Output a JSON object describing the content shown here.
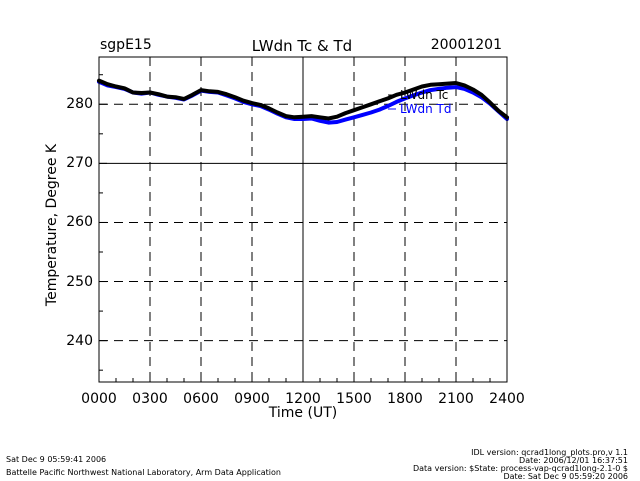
{
  "header": {
    "station": "sgpE15",
    "date": "20001201"
  },
  "footer": {
    "run_time": "Sat Dec  9 05:59:41 2006",
    "lab": "Battelle Pacific Northwest National Laboratory, Arm Data Application",
    "idl_version": "IDL version: qcrad1long_plots.pro,v 1.1",
    "date_line": "Date: 2006/12/01 16:37:51",
    "data_version": "Data version: $State: process-vap-qcrad1long-2.1-0 $",
    "data_date": "Date: Sat Dec  9 05:59:20 2006"
  },
  "chart_data": {
    "type": "line",
    "title": "LWdn Tc & Td",
    "xlabel": "Time (UT)",
    "ylabel": "Temperature, Degree K",
    "xlim": [
      0,
      2400
    ],
    "ylim": [
      233,
      288
    ],
    "x_ticks": [
      "0000",
      "0300",
      "0600",
      "0900",
      "1200",
      "1500",
      "1800",
      "2100",
      "2400"
    ],
    "y_ticks": [
      240,
      250,
      260,
      270,
      280
    ],
    "grid": "dashed",
    "legend_position": "top-right",
    "series": [
      {
        "name": "LWdn Tc",
        "color": "#000000",
        "x": [
          0,
          50,
          100,
          150,
          200,
          250,
          300,
          350,
          400,
          450,
          500,
          550,
          600,
          650,
          700,
          750,
          800,
          850,
          900,
          950,
          1000,
          1050,
          1100,
          1150,
          1200,
          1250,
          1300,
          1350,
          1400,
          1450,
          1500,
          1550,
          1600,
          1650,
          1700,
          1750,
          1800,
          1850,
          1900,
          1950,
          2000,
          2050,
          2100,
          2150,
          2200,
          2250,
          2300,
          2350,
          2400
        ],
        "values": [
          284.0,
          283.4,
          283.0,
          282.7,
          282.0,
          281.9,
          282.0,
          281.7,
          281.3,
          281.2,
          280.9,
          281.6,
          282.4,
          282.2,
          282.1,
          281.7,
          281.2,
          280.6,
          280.2,
          279.9,
          279.3,
          278.6,
          278.0,
          277.8,
          277.9,
          278.0,
          277.8,
          277.6,
          277.9,
          278.5,
          279.0,
          279.5,
          280.0,
          280.5,
          281.0,
          281.6,
          282.0,
          282.5,
          283.0,
          283.3,
          283.4,
          283.5,
          283.6,
          283.2,
          282.5,
          281.6,
          280.3,
          278.9,
          277.8
        ]
      },
      {
        "name": "LWdn Td",
        "color": "#0000ff",
        "x": [
          0,
          50,
          100,
          150,
          200,
          250,
          300,
          350,
          400,
          450,
          500,
          550,
          600,
          650,
          700,
          750,
          800,
          850,
          900,
          950,
          1000,
          1050,
          1100,
          1150,
          1200,
          1250,
          1300,
          1350,
          1400,
          1450,
          1500,
          1550,
          1600,
          1650,
          1700,
          1750,
          1800,
          1850,
          1900,
          1950,
          2000,
          2050,
          2100,
          2150,
          2200,
          2250,
          2300,
          2350,
          2400
        ],
        "values": [
          283.8,
          283.2,
          282.9,
          282.6,
          282.0,
          281.8,
          282.0,
          281.6,
          281.3,
          281.1,
          280.8,
          281.5,
          282.3,
          282.1,
          282.0,
          281.5,
          281.0,
          280.4,
          280.0,
          279.7,
          279.1,
          278.4,
          277.8,
          277.5,
          277.5,
          277.6,
          277.2,
          276.9,
          277.0,
          277.4,
          277.8,
          278.2,
          278.6,
          279.1,
          279.7,
          280.4,
          281.0,
          281.5,
          282.0,
          282.4,
          282.6,
          282.8,
          282.9,
          282.6,
          282.0,
          281.2,
          280.1,
          278.8,
          277.5
        ]
      }
    ]
  }
}
